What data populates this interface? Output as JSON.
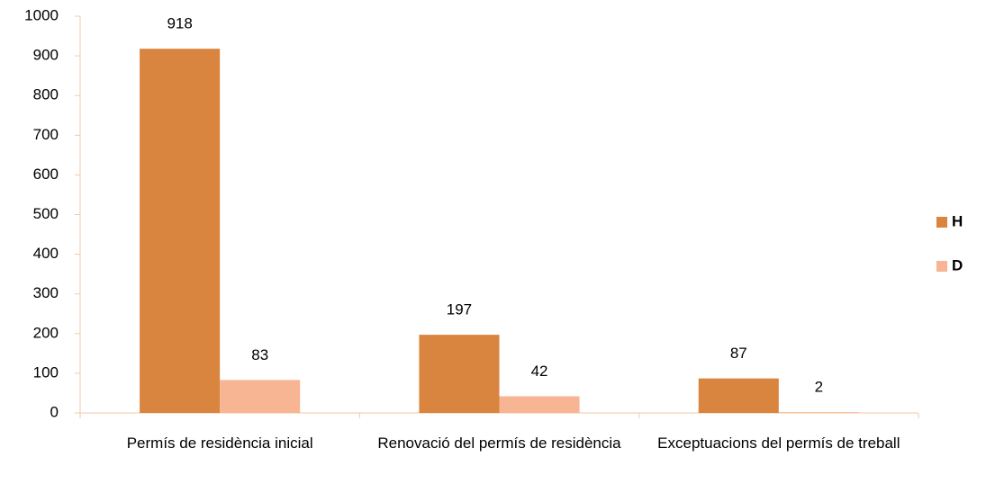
{
  "chart_data": {
    "type": "bar",
    "categories": [
      "Permís de residència inicial",
      "Renovació del permís de residència",
      "Exceptuacions del permís de treball"
    ],
    "series": [
      {
        "name": "H",
        "color": "#d9843f",
        "values": [
          918,
          197,
          87
        ]
      },
      {
        "name": "D",
        "color": "#f8b593",
        "values": [
          83,
          42,
          2
        ]
      }
    ],
    "ylim": [
      0,
      1000
    ],
    "yticks": [
      0,
      100,
      200,
      300,
      400,
      500,
      600,
      700,
      800,
      900,
      1000
    ],
    "legend": "right"
  }
}
